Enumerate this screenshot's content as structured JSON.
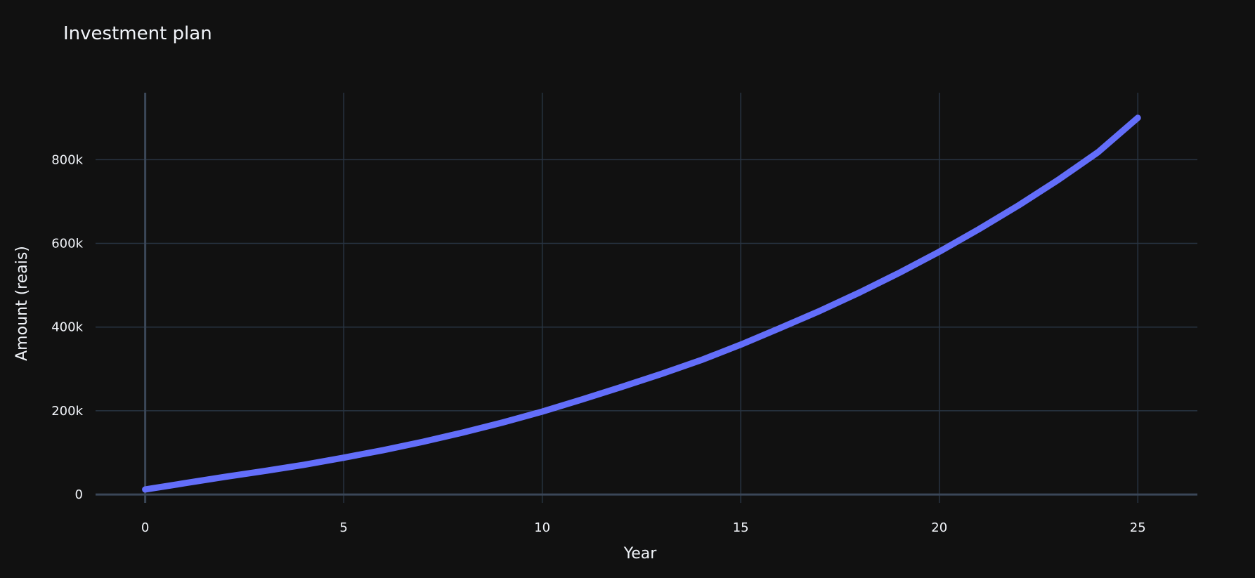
{
  "chart_data": {
    "type": "line",
    "title": "Investment plan",
    "xlabel": "Year",
    "ylabel": "Amount (reais)",
    "xlim": [
      -1.25,
      26.5
    ],
    "ylim": [
      -20000,
      960000
    ],
    "x_ticks": [
      0,
      5,
      10,
      15,
      20,
      25
    ],
    "y_ticks": [
      0,
      200000,
      400000,
      600000,
      800000
    ],
    "x_tick_labels": [
      "0",
      "5",
      "10",
      "15",
      "20",
      "25"
    ],
    "y_tick_labels": [
      "0",
      "200k",
      "400k",
      "600k",
      "800k"
    ],
    "grid": true,
    "background_color": "#111111",
    "grid_color": "#283442",
    "text_color": "#f2f5fa",
    "series": [
      {
        "color": "#636efa",
        "x": [
          0,
          1,
          2,
          3,
          4,
          5,
          6,
          7,
          8,
          9,
          10,
          11,
          12,
          13,
          14,
          15,
          16,
          17,
          18,
          19,
          20,
          21,
          22,
          23,
          24,
          25
        ],
        "y": [
          12000,
          27000,
          42000,
          56000,
          71000,
          88000,
          106000,
          126000,
          148000,
          172000,
          198000,
          227000,
          257000,
          288000,
          321000,
          358000,
          398000,
          439000,
          483000,
          530000,
          580000,
          634000,
          691000,
          752000,
          818000,
          900000
        ]
      }
    ]
  }
}
